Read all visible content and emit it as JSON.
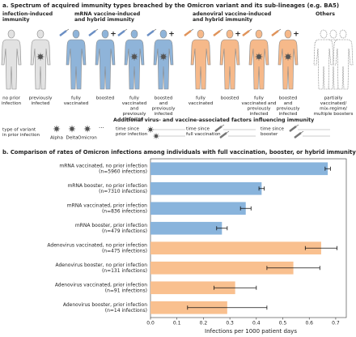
{
  "figure": {
    "panel_a": {
      "title": "a. Spectrum of acquired immunity types breached by the Omicron variant and its sub-lineages (e.g. BA5)",
      "groups": [
        {
          "label": [
            "infection-induced",
            "immunity"
          ]
        },
        {
          "label": [
            "mRNA vaccine-induced",
            "and hybrid immunity"
          ]
        },
        {
          "label": [
            "adenoviral vaccine-induced",
            "and hybrid immunity"
          ]
        },
        {
          "label": [
            "Others"
          ]
        }
      ],
      "people": [
        {
          "label": [
            "no prior",
            "infection"
          ]
        },
        {
          "label": [
            "previously",
            "infected"
          ]
        },
        {
          "label": [
            "fully",
            "vaccinated"
          ]
        },
        {
          "label": [
            "boosted"
          ]
        },
        {
          "label": [
            "fully",
            "vaccinated",
            "and",
            "previously",
            "infected"
          ]
        },
        {
          "label": [
            "boosted",
            "and",
            "previously",
            "infected"
          ]
        },
        {
          "label": [
            "fully",
            "vaccinated"
          ]
        },
        {
          "label": [
            "boosted"
          ]
        },
        {
          "label": [
            "fully",
            "vaccinated and",
            "previously",
            "infected"
          ]
        },
        {
          "label": [
            "boosted",
            "and",
            "previously",
            "infected"
          ]
        },
        {
          "label": [
            "partially",
            "vaccinated/",
            "mix-regime/",
            "multiple boosters"
          ]
        }
      ],
      "factors_title": "Additional virus- and vaccine-associated factors influencing immunity",
      "variant_label": [
        "type of variant",
        "in prior infection"
      ],
      "variants": [
        "Alpha",
        "Delta",
        "Omicron"
      ],
      "time_labels": [
        [
          "time since",
          "prior infection"
        ],
        [
          "time since",
          "full vaccination"
        ],
        [
          "time since",
          "booster"
        ]
      ]
    }
  },
  "chart_data": {
    "type": "barh",
    "title": "b. Comparison of rates of Omicron infections among individuals with full vaccination, booster, or hybrid immunity",
    "categories": [
      "mRNA vaccinated, no prior infection",
      "mRNA booster, no prior infection",
      "mRNA vaccinated, prior infection",
      "mRNA booster, prior infection",
      "Adenovirus vaccinated, no prior infection",
      "Adenovirus booster, no prior infection",
      "Adenovirus vaccinated, prior infection",
      "Adenovirus booster, prior infection"
    ],
    "category_counts": [
      "(n=5960 infections)",
      "(n=7310 infections)",
      "(n=836 infections)",
      "(n=479 infections)",
      "(n=475 infections)",
      "(n=131 infections)",
      "(n=91 infections)",
      "(n=14 infections)"
    ],
    "values": [
      0.67,
      0.42,
      0.36,
      0.27,
      0.645,
      0.54,
      0.32,
      0.29
    ],
    "errors": [
      0.01,
      0.01,
      0.02,
      0.02,
      0.06,
      0.1,
      0.08,
      0.15
    ],
    "colors": [
      "#89b4dc",
      "#89b4dc",
      "#89b4dc",
      "#89b4dc",
      "#f9c08f",
      "#f9c08f",
      "#f9c08f",
      "#f9c08f"
    ],
    "xlabel": "Infections per 1000 patient days",
    "xlim": [
      0,
      0.74
    ],
    "xticks": [
      {
        "value": 0,
        "label": "0.0"
      },
      0.1,
      0.2,
      0.3,
      0.4,
      0.5,
      0.6,
      0.7
    ],
    "grid": false
  }
}
